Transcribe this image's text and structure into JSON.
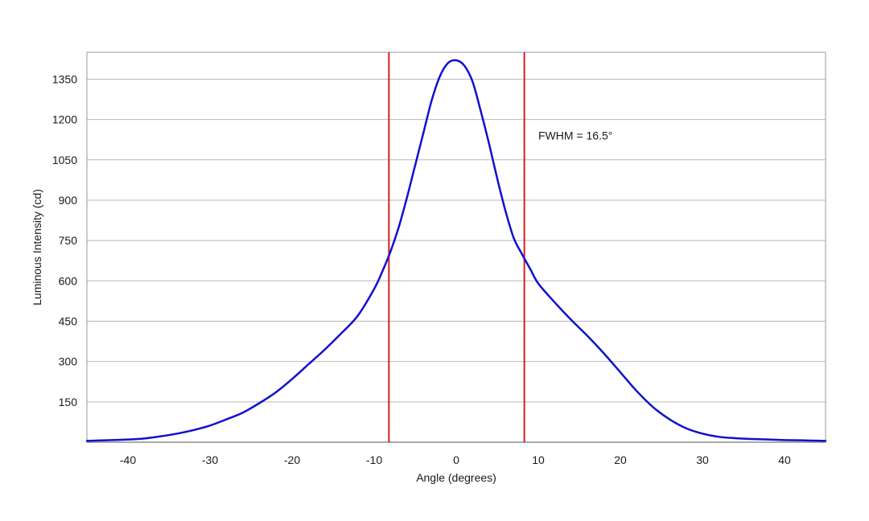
{
  "chart_data": {
    "type": "line",
    "title": "",
    "xlabel": "Angle (degrees)",
    "ylabel": "Luminous Intensity (cd)",
    "xlim": [
      -45,
      45
    ],
    "ylim": [
      0,
      1450
    ],
    "x_ticks": [
      -40,
      -30,
      -20,
      -10,
      0,
      10,
      20,
      30,
      40
    ],
    "y_ticks": [
      150,
      300,
      450,
      600,
      750,
      900,
      1050,
      1200,
      1350
    ],
    "grid": "horizontal",
    "legend": "none",
    "series": [
      {
        "color": "#1010d0",
        "x": [
          -45,
          -42,
          -40,
          -38,
          -36,
          -34,
          -32,
          -30,
          -28,
          -26,
          -24,
          -22,
          -20,
          -18,
          -16,
          -14,
          -12,
          -10,
          -9,
          -8,
          -7,
          -6,
          -5,
          -4,
          -3,
          -2,
          -1,
          0,
          1,
          2,
          3,
          4,
          5,
          6,
          7,
          8,
          9,
          10,
          12,
          14,
          16,
          18,
          20,
          22,
          24,
          26,
          28,
          30,
          32,
          34,
          36,
          38,
          40,
          42,
          45
        ],
        "y": [
          5,
          8,
          10,
          14,
          22,
          32,
          45,
          62,
          85,
          110,
          145,
          185,
          235,
          290,
          345,
          405,
          470,
          570,
          635,
          710,
          800,
          910,
          1030,
          1150,
          1270,
          1360,
          1410,
          1420,
          1400,
          1340,
          1230,
          1110,
          980,
          860,
          760,
          700,
          645,
          590,
          520,
          455,
          395,
          330,
          260,
          190,
          130,
          85,
          52,
          32,
          20,
          15,
          12,
          10,
          8,
          7,
          5
        ]
      }
    ],
    "vertical_markers": {
      "color": "#d42020",
      "x": [
        -8.2,
        8.3
      ]
    },
    "annotations": [
      {
        "text": "FWHM = 16.5°",
        "x": 10,
        "y": 1125
      }
    ]
  }
}
